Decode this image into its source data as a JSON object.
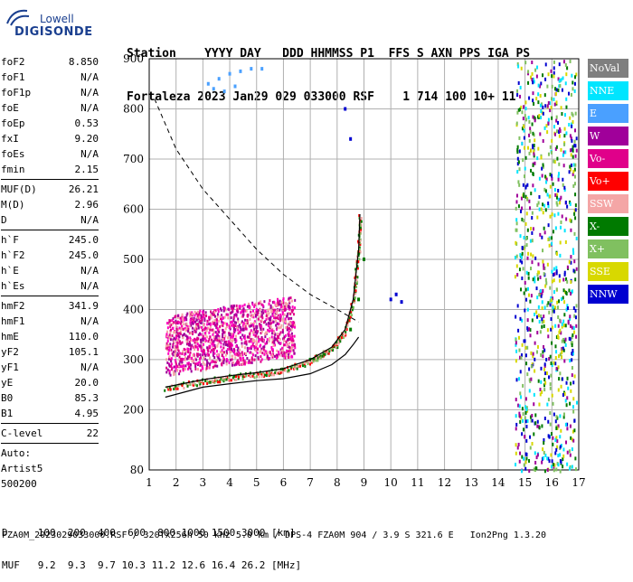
{
  "logo": {
    "line1": "Lowell",
    "line2": "DIGISONDE"
  },
  "header": {
    "line1": "Station    YYYY DAY   DDD HHMMSS P1  FFS S AXN PPS IGA PS",
    "line2": "Fortaleza 2023 Jan29 029 033000 RSF    1 714 100 10+ 11"
  },
  "params": {
    "group1": [
      {
        "k": "foF2",
        "v": "8.850"
      },
      {
        "k": "foF1",
        "v": "N/A"
      },
      {
        "k": "foF1p",
        "v": "N/A"
      },
      {
        "k": "foE",
        "v": "N/A"
      },
      {
        "k": "foEp",
        "v": "0.53"
      },
      {
        "k": "fxI",
        "v": "9.20"
      },
      {
        "k": "foEs",
        "v": "N/A"
      },
      {
        "k": "fmin",
        "v": "2.15"
      }
    ],
    "group2": [
      {
        "k": "MUF(D)",
        "v": "26.21"
      },
      {
        "k": "M(D)",
        "v": "2.96"
      },
      {
        "k": "D",
        "v": "N/A"
      }
    ],
    "group3": [
      {
        "k": "h`F",
        "v": "245.0"
      },
      {
        "k": "h`F2",
        "v": "245.0"
      },
      {
        "k": "h`E",
        "v": "N/A"
      },
      {
        "k": "h`Es",
        "v": "N/A"
      }
    ],
    "group4": [
      {
        "k": "hmF2",
        "v": "341.9"
      },
      {
        "k": "hmF1",
        "v": "N/A"
      },
      {
        "k": "hmE",
        "v": "110.0"
      },
      {
        "k": "yF2",
        "v": "105.1"
      },
      {
        "k": "yF1",
        "v": "N/A"
      },
      {
        "k": "yE",
        "v": "20.0"
      },
      {
        "k": "B0",
        "v": "85.3"
      },
      {
        "k": "B1",
        "v": "4.95"
      }
    ],
    "group5": [
      {
        "k": "C-level",
        "v": "22"
      }
    ],
    "auto": [
      "Auto:",
      "Artist5",
      "500200"
    ]
  },
  "legend": [
    {
      "label": "NoVal",
      "color": "#7f7f7f"
    },
    {
      "label": "NNE",
      "color": "#00e5ff"
    },
    {
      "label": "E",
      "color": "#4aa0ff"
    },
    {
      "label": "W",
      "color": "#a0009a"
    },
    {
      "label": "Vo-",
      "color": "#e0008a"
    },
    {
      "label": "Vo+",
      "color": "#ff0000"
    },
    {
      "label": "SSW",
      "color": "#f4a6a6"
    },
    {
      "label": "X-",
      "color": "#007a00"
    },
    {
      "label": "X+",
      "color": "#80c060"
    },
    {
      "label": "SSE",
      "color": "#d8d800"
    },
    {
      "label": "NNW",
      "color": "#0000d0"
    }
  ],
  "footer": {
    "line1": "D     100  200  400  600  800 1000 1500 3000 [km]",
    "line2": "MUF   9.2  9.3  9.7 10.3 11.2 12.6 16.4 26.2 [MHz]",
    "line3": "FZA0M_2023029033000.RSF / 320fx256h 50 kHz 5.0 km / DPS-4 FZA0M 904 / 3.9 S 321.6 E   Ion2Png 1.3.20"
  },
  "chart_data": {
    "type": "scatter",
    "xlim": [
      1,
      17
    ],
    "ylim": [
      80,
      900
    ],
    "x_ticks": [
      1,
      2,
      3,
      4,
      5,
      6,
      7,
      8,
      9,
      10,
      11,
      12,
      13,
      14,
      15,
      16,
      17
    ],
    "y_ticks": [
      80,
      200,
      300,
      400,
      500,
      600,
      700,
      800,
      900
    ],
    "series": [
      {
        "name": "E",
        "color": "#4aa0ff",
        "points": [
          [
            3.2,
            850
          ],
          [
            3.6,
            860
          ],
          [
            4.0,
            870
          ],
          [
            4.4,
            875
          ],
          [
            4.8,
            880
          ],
          [
            5.2,
            880
          ],
          [
            3.4,
            840
          ],
          [
            3.8,
            835
          ],
          [
            4.2,
            845
          ]
        ]
      },
      {
        "name": "W",
        "color": "#a0009a",
        "points": [
          [
            2.5,
            330
          ],
          [
            3,
            340
          ],
          [
            3.5,
            345
          ],
          [
            4,
            350
          ],
          [
            4.5,
            360
          ],
          [
            5,
            365
          ],
          [
            5.5,
            380
          ]
        ]
      },
      {
        "name": "Vo-",
        "color": "#e0008a",
        "points": [
          [
            2.2,
            300
          ],
          [
            2.8,
            310
          ],
          [
            3.4,
            320
          ],
          [
            4,
            330
          ],
          [
            4.6,
            335
          ],
          [
            5.2,
            340
          ],
          [
            5.8,
            345
          ]
        ]
      },
      {
        "name": "X-",
        "color": "#007a00",
        "points": [
          [
            7,
            300
          ],
          [
            7.5,
            310
          ],
          [
            8,
            325
          ],
          [
            8.5,
            360
          ],
          [
            8.8,
            420
          ],
          [
            9,
            500
          ]
        ]
      },
      {
        "name": "NNW",
        "color": "#0000d0",
        "points": [
          [
            8.3,
            800
          ],
          [
            8.5,
            740
          ],
          [
            10,
            420
          ],
          [
            10.2,
            430
          ],
          [
            10.4,
            415
          ]
        ]
      }
    ],
    "curves": {
      "virtual_trace_top": [
        [
          1.6,
          245
        ],
        [
          3,
          260
        ],
        [
          4,
          268
        ],
        [
          5,
          274
        ],
        [
          6,
          282
        ],
        [
          7,
          300
        ],
        [
          7.8,
          325
        ],
        [
          8.3,
          360
        ],
        [
          8.6,
          420
        ],
        [
          8.8,
          520
        ],
        [
          8.85,
          590
        ]
      ],
      "true_height": [
        [
          1.6,
          225
        ],
        [
          3,
          245
        ],
        [
          4,
          252
        ],
        [
          5,
          258
        ],
        [
          6,
          262
        ],
        [
          7,
          272
        ],
        [
          7.8,
          290
        ],
        [
          8.3,
          310
        ],
        [
          8.6,
          330
        ],
        [
          8.8,
          345
        ]
      ],
      "muf_dashed": [
        [
          1.2,
          820
        ],
        [
          2,
          720
        ],
        [
          3,
          640
        ],
        [
          4,
          580
        ],
        [
          5,
          520
        ],
        [
          6,
          470
        ],
        [
          7,
          430
        ],
        [
          8,
          400
        ],
        [
          8.8,
          375
        ]
      ]
    }
  }
}
